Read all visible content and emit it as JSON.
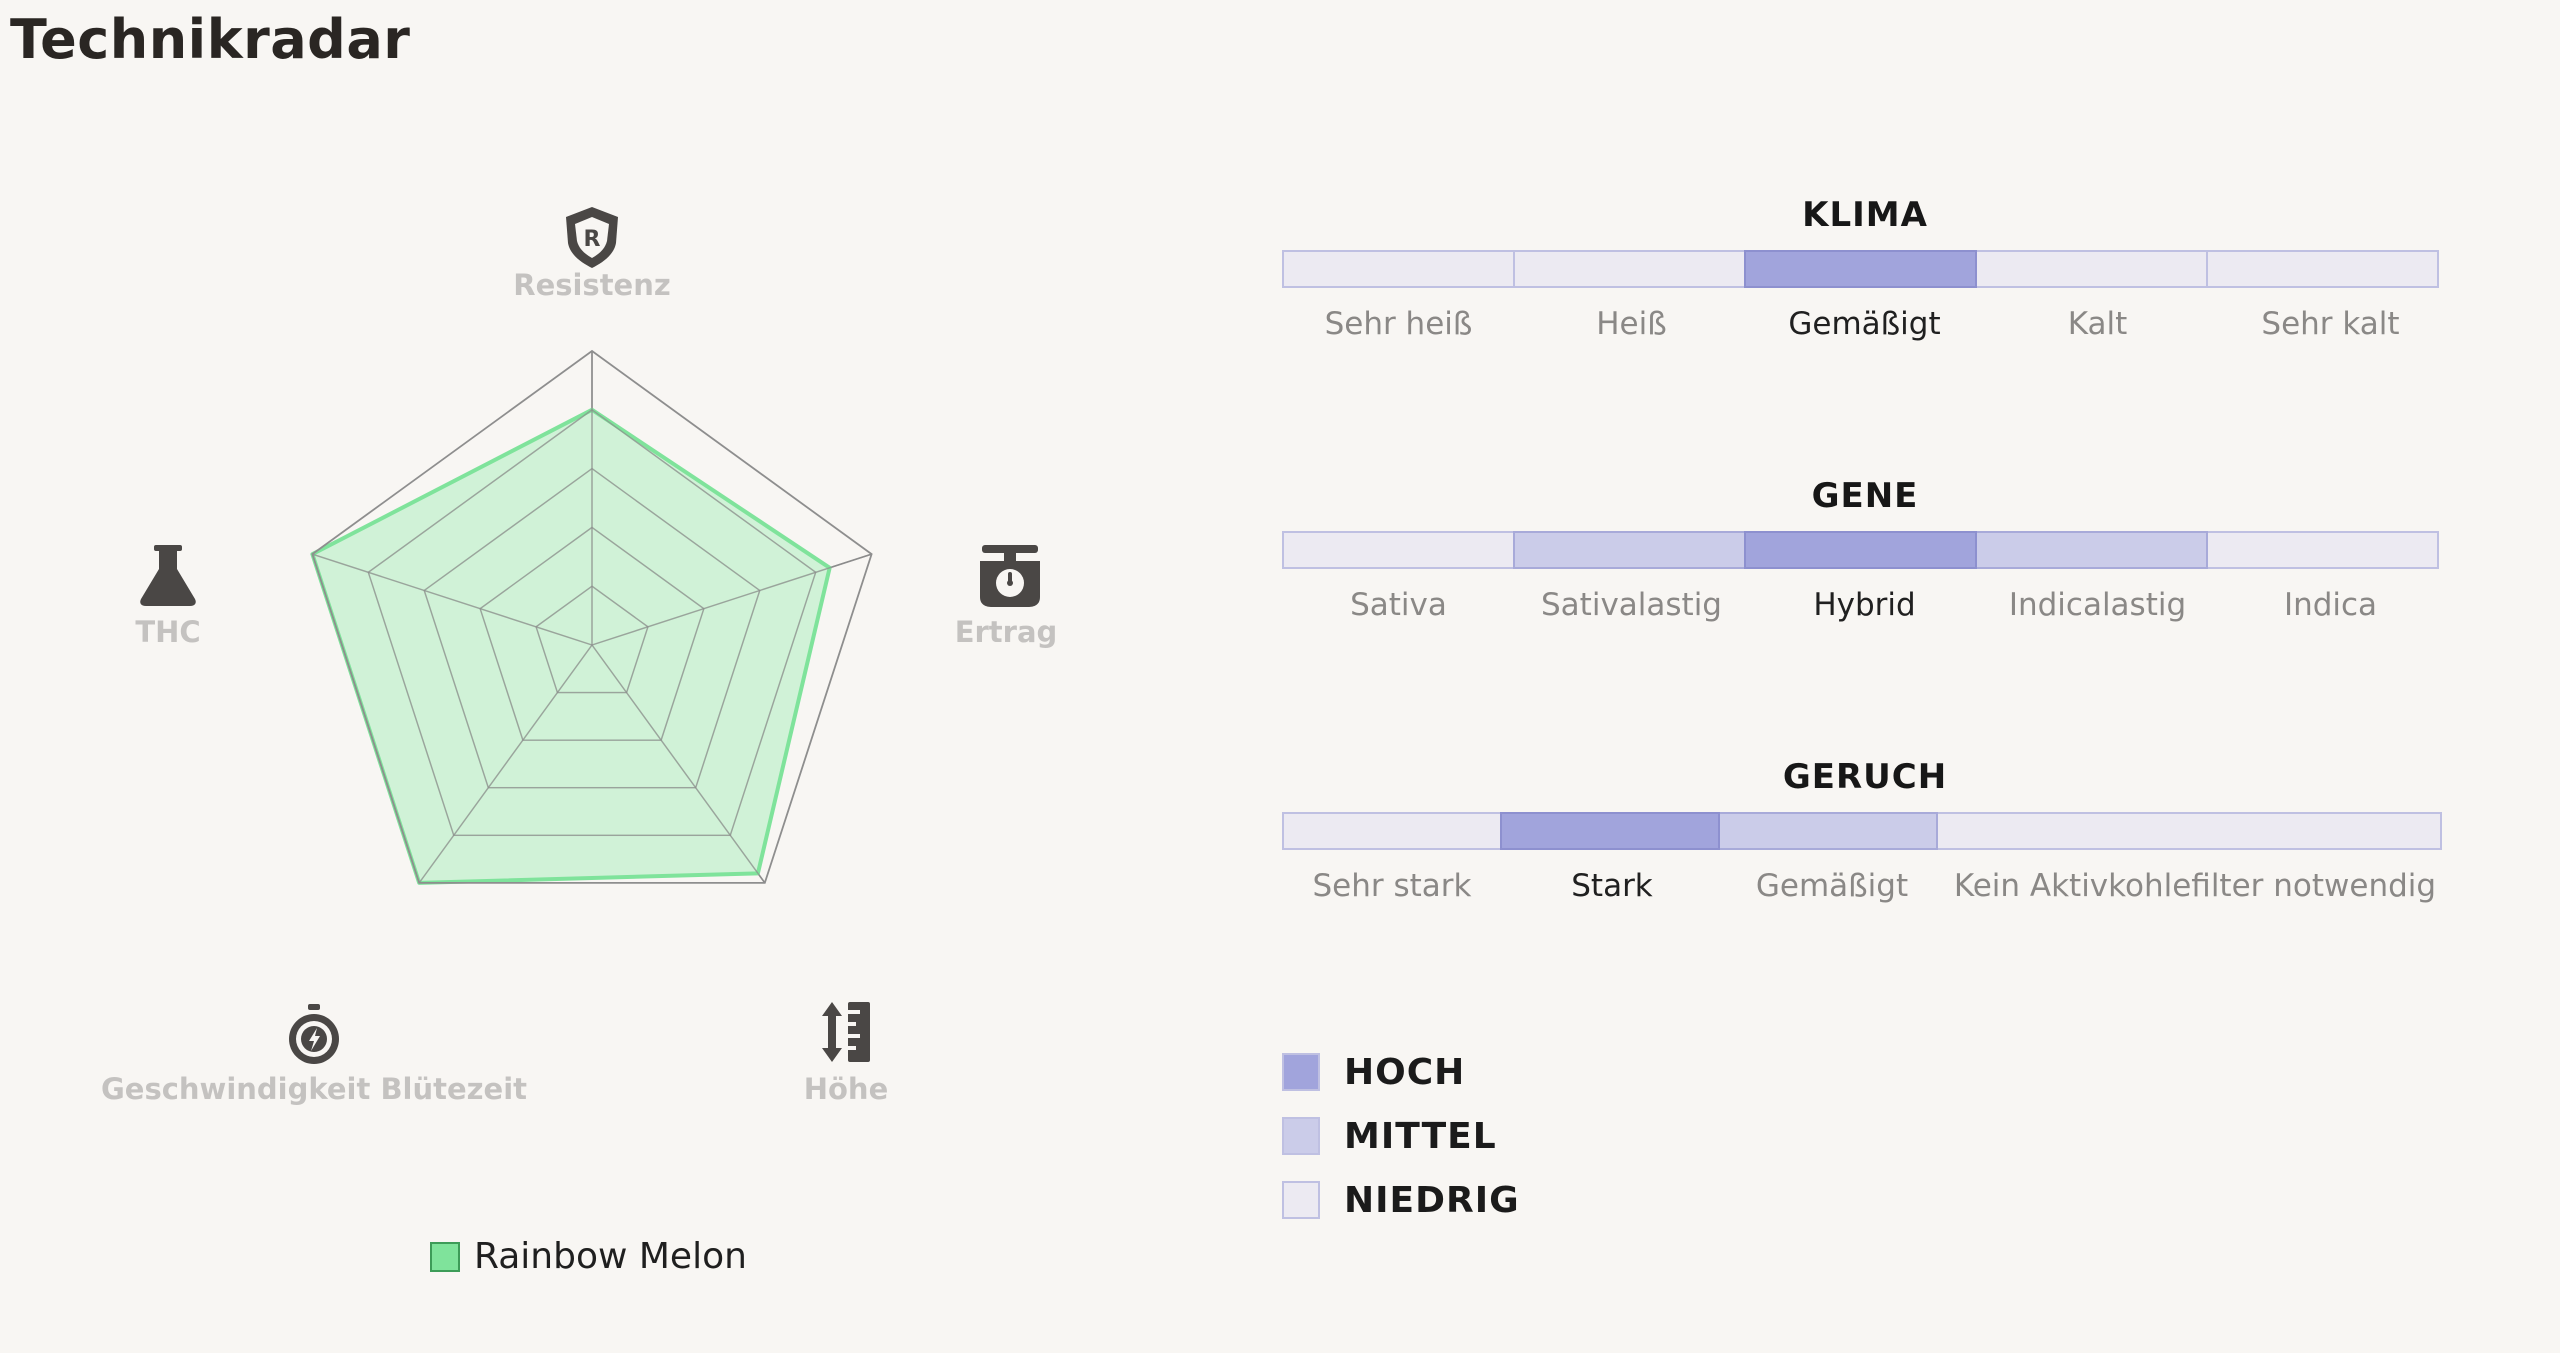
{
  "page": {
    "title": "Technikradar"
  },
  "radar": {
    "axes": [
      {
        "label": "Resistenz",
        "icon": "shield-r-icon",
        "value": 0.8
      },
      {
        "label": "Ertrag",
        "icon": "scale-icon",
        "value": 0.85
      },
      {
        "label": "Höhe",
        "icon": "height-ruler-icon",
        "value": 0.96
      },
      {
        "label": "Geschwindigkeit Blütezeit",
        "icon": "stopwatch-icon",
        "value": 1.0
      },
      {
        "label": "THC",
        "icon": "flask-icon",
        "value": 1.0
      }
    ],
    "rings": 5,
    "series_name": "Rainbow Melon",
    "series_color": "#7fe39b",
    "series_fill": "#c9f1d1"
  },
  "scales": [
    {
      "title": "KLIMA",
      "segments": [
        {
          "label": "Sehr heiß",
          "level": "niedrig"
        },
        {
          "label": "Heiß",
          "level": "niedrig"
        },
        {
          "label": "Gemäßigt",
          "level": "hoch"
        },
        {
          "label": "Kalt",
          "level": "niedrig"
        },
        {
          "label": "Sehr kalt",
          "level": "niedrig"
        }
      ]
    },
    {
      "title": "GENE",
      "segments": [
        {
          "label": "Sativa",
          "level": "niedrig"
        },
        {
          "label": "Sativalastig",
          "level": "mittel"
        },
        {
          "label": "Hybrid",
          "level": "hoch"
        },
        {
          "label": "Indicalastig",
          "level": "mittel"
        },
        {
          "label": "Indica",
          "level": "niedrig"
        }
      ]
    },
    {
      "title": "GERUCH",
      "segments": [
        {
          "label": "Sehr stark",
          "level": "niedrig"
        },
        {
          "label": "Stark",
          "level": "hoch"
        },
        {
          "label": "Gemäßigt",
          "level": "mittel"
        },
        {
          "label": "Kein Aktivkohlefilter notwendig",
          "level": "niedrig",
          "wide": true
        }
      ]
    }
  ],
  "legend": [
    {
      "label": "HOCH",
      "level": "hoch"
    },
    {
      "label": "MITTEL",
      "level": "mittel"
    },
    {
      "label": "NIEDRIG",
      "level": "niedrig"
    }
  ],
  "colors": {
    "hoch": "#a1a4dc",
    "mittel": "#cbcce9",
    "niedrig": "#eceaf2"
  }
}
